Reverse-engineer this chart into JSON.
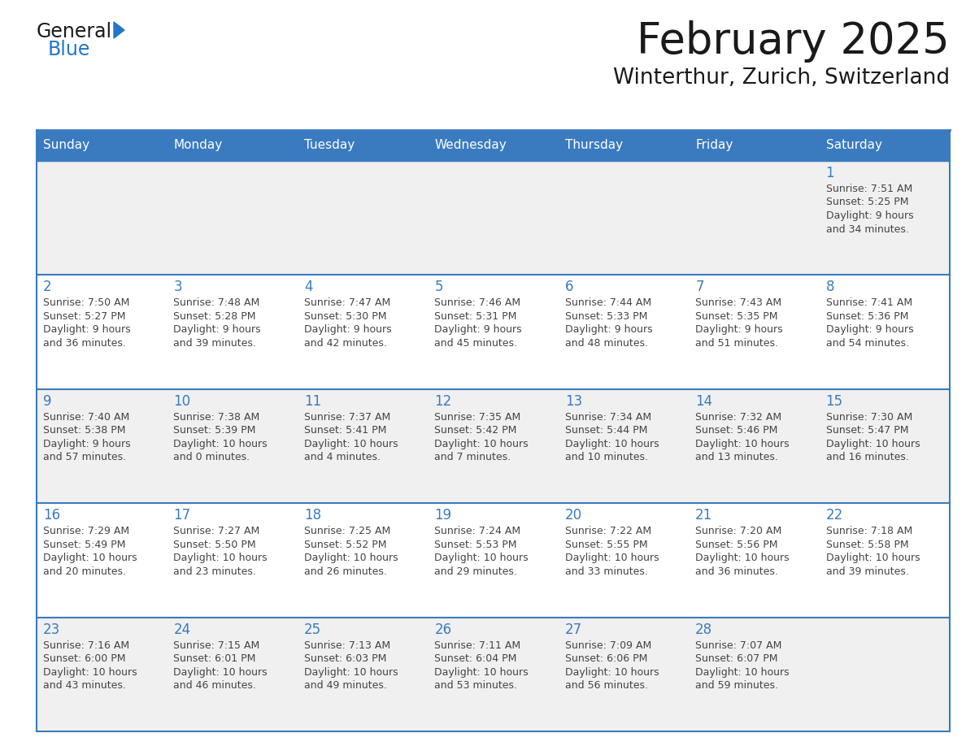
{
  "title": "February 2025",
  "subtitle": "Winterthur, Zurich, Switzerland",
  "days_of_week": [
    "Sunday",
    "Monday",
    "Tuesday",
    "Wednesday",
    "Thursday",
    "Friday",
    "Saturday"
  ],
  "header_bg": "#3a7bbf",
  "header_text": "#ffffff",
  "row_bg_odd": "#f0f0f0",
  "row_bg_even": "#ffffff",
  "border_color": "#3a7bbf",
  "day_num_color": "#3a7bbf",
  "text_color": "#444444",
  "calendar_data": [
    [
      null,
      null,
      null,
      null,
      null,
      null,
      {
        "day": 1,
        "sunrise": "7:51 AM",
        "sunset": "5:25 PM",
        "daylight_h": "9 hours",
        "daylight_m": "and 34 minutes."
      }
    ],
    [
      {
        "day": 2,
        "sunrise": "7:50 AM",
        "sunset": "5:27 PM",
        "daylight_h": "9 hours",
        "daylight_m": "and 36 minutes."
      },
      {
        "day": 3,
        "sunrise": "7:48 AM",
        "sunset": "5:28 PM",
        "daylight_h": "9 hours",
        "daylight_m": "and 39 minutes."
      },
      {
        "day": 4,
        "sunrise": "7:47 AM",
        "sunset": "5:30 PM",
        "daylight_h": "9 hours",
        "daylight_m": "and 42 minutes."
      },
      {
        "day": 5,
        "sunrise": "7:46 AM",
        "sunset": "5:31 PM",
        "daylight_h": "9 hours",
        "daylight_m": "and 45 minutes."
      },
      {
        "day": 6,
        "sunrise": "7:44 AM",
        "sunset": "5:33 PM",
        "daylight_h": "9 hours",
        "daylight_m": "and 48 minutes."
      },
      {
        "day": 7,
        "sunrise": "7:43 AM",
        "sunset": "5:35 PM",
        "daylight_h": "9 hours",
        "daylight_m": "and 51 minutes."
      },
      {
        "day": 8,
        "sunrise": "7:41 AM",
        "sunset": "5:36 PM",
        "daylight_h": "9 hours",
        "daylight_m": "and 54 minutes."
      }
    ],
    [
      {
        "day": 9,
        "sunrise": "7:40 AM",
        "sunset": "5:38 PM",
        "daylight_h": "9 hours",
        "daylight_m": "and 57 minutes."
      },
      {
        "day": 10,
        "sunrise": "7:38 AM",
        "sunset": "5:39 PM",
        "daylight_h": "10 hours",
        "daylight_m": "and 0 minutes."
      },
      {
        "day": 11,
        "sunrise": "7:37 AM",
        "sunset": "5:41 PM",
        "daylight_h": "10 hours",
        "daylight_m": "and 4 minutes."
      },
      {
        "day": 12,
        "sunrise": "7:35 AM",
        "sunset": "5:42 PM",
        "daylight_h": "10 hours",
        "daylight_m": "and 7 minutes."
      },
      {
        "day": 13,
        "sunrise": "7:34 AM",
        "sunset": "5:44 PM",
        "daylight_h": "10 hours",
        "daylight_m": "and 10 minutes."
      },
      {
        "day": 14,
        "sunrise": "7:32 AM",
        "sunset": "5:46 PM",
        "daylight_h": "10 hours",
        "daylight_m": "and 13 minutes."
      },
      {
        "day": 15,
        "sunrise": "7:30 AM",
        "sunset": "5:47 PM",
        "daylight_h": "10 hours",
        "daylight_m": "and 16 minutes."
      }
    ],
    [
      {
        "day": 16,
        "sunrise": "7:29 AM",
        "sunset": "5:49 PM",
        "daylight_h": "10 hours",
        "daylight_m": "and 20 minutes."
      },
      {
        "day": 17,
        "sunrise": "7:27 AM",
        "sunset": "5:50 PM",
        "daylight_h": "10 hours",
        "daylight_m": "and 23 minutes."
      },
      {
        "day": 18,
        "sunrise": "7:25 AM",
        "sunset": "5:52 PM",
        "daylight_h": "10 hours",
        "daylight_m": "and 26 minutes."
      },
      {
        "day": 19,
        "sunrise": "7:24 AM",
        "sunset": "5:53 PM",
        "daylight_h": "10 hours",
        "daylight_m": "and 29 minutes."
      },
      {
        "day": 20,
        "sunrise": "7:22 AM",
        "sunset": "5:55 PM",
        "daylight_h": "10 hours",
        "daylight_m": "and 33 minutes."
      },
      {
        "day": 21,
        "sunrise": "7:20 AM",
        "sunset": "5:56 PM",
        "daylight_h": "10 hours",
        "daylight_m": "and 36 minutes."
      },
      {
        "day": 22,
        "sunrise": "7:18 AM",
        "sunset": "5:58 PM",
        "daylight_h": "10 hours",
        "daylight_m": "and 39 minutes."
      }
    ],
    [
      {
        "day": 23,
        "sunrise": "7:16 AM",
        "sunset": "6:00 PM",
        "daylight_h": "10 hours",
        "daylight_m": "and 43 minutes."
      },
      {
        "day": 24,
        "sunrise": "7:15 AM",
        "sunset": "6:01 PM",
        "daylight_h": "10 hours",
        "daylight_m": "and 46 minutes."
      },
      {
        "day": 25,
        "sunrise": "7:13 AM",
        "sunset": "6:03 PM",
        "daylight_h": "10 hours",
        "daylight_m": "and 49 minutes."
      },
      {
        "day": 26,
        "sunrise": "7:11 AM",
        "sunset": "6:04 PM",
        "daylight_h": "10 hours",
        "daylight_m": "and 53 minutes."
      },
      {
        "day": 27,
        "sunrise": "7:09 AM",
        "sunset": "6:06 PM",
        "daylight_h": "10 hours",
        "daylight_m": "and 56 minutes."
      },
      {
        "day": 28,
        "sunrise": "7:07 AM",
        "sunset": "6:07 PM",
        "daylight_h": "10 hours",
        "daylight_m": "and 59 minutes."
      },
      null
    ]
  ],
  "logo_color_general": "#1a1a1a",
  "logo_color_blue": "#2277cc",
  "logo_triangle_color": "#2277cc",
  "fig_width": 11.88,
  "fig_height": 9.18,
  "dpi": 100
}
